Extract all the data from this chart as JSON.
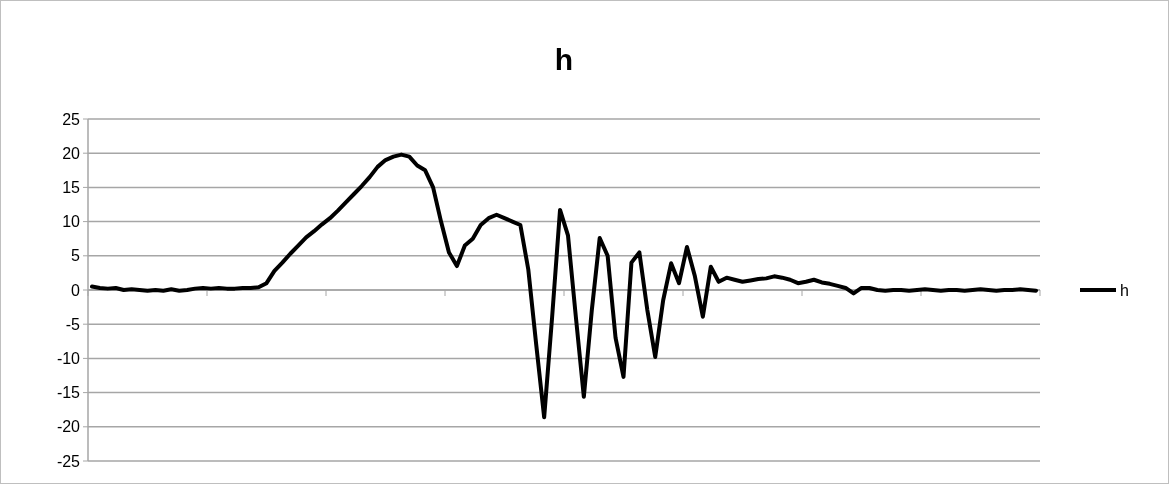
{
  "chart_data": {
    "type": "line",
    "title": "h",
    "categories": [
      null,
      null,
      null,
      null,
      null,
      null,
      null,
      null,
      null,
      null,
      null,
      null,
      null,
      null,
      null,
      null,
      null,
      null,
      null,
      null,
      null,
      null,
      null,
      null,
      null,
      null,
      null,
      null,
      null,
      null,
      null,
      null,
      null,
      null,
      null,
      null,
      null,
      null,
      null,
      null,
      null,
      null,
      null,
      null,
      null,
      null,
      null,
      null,
      null,
      null,
      null,
      null,
      null,
      null,
      null,
      null,
      null,
      null,
      null,
      null,
      null,
      null,
      null,
      null,
      null,
      null,
      null,
      null,
      null,
      null,
      null,
      null,
      null,
      null,
      null,
      null,
      null,
      null,
      null,
      null,
      null,
      null,
      null,
      null,
      null,
      null,
      null,
      null,
      null,
      null,
      null,
      null,
      null,
      null,
      null,
      null,
      null,
      null,
      null,
      null,
      null,
      null,
      null,
      null,
      null,
      null,
      null,
      null,
      null,
      null,
      null,
      null,
      null,
      null,
      null,
      null,
      null,
      null,
      null,
      null
    ],
    "series": [
      {
        "name": "h",
        "color": "#000000",
        "values": [
          0.5,
          0.3,
          0.2,
          0.3,
          0,
          0.1,
          0,
          -0.1,
          0,
          -0.1,
          0.1,
          -0.1,
          0,
          0.2,
          0.3,
          0.2,
          0.3,
          0.2,
          0.2,
          0.3,
          0.3,
          0.4,
          1,
          2.8,
          4,
          5.3,
          6.5,
          7.7,
          8.6,
          9.6,
          10.5,
          11.6,
          12.8,
          14,
          15.2,
          16.5,
          18,
          19,
          19.5,
          19.8,
          19.5,
          18.2,
          17.5,
          15,
          10,
          5.5,
          3.5,
          6.5,
          7.5,
          9.5,
          10.5,
          11,
          10.5,
          10,
          9.5,
          3,
          -8,
          -18.6,
          -4,
          11.7,
          8,
          -4,
          -15.6,
          -3,
          7.6,
          5,
          -7,
          -12.7,
          4,
          5.5,
          -2.9,
          -9.8,
          -1.5,
          3.9,
          1,
          6.3,
          2,
          -3.9,
          3.4,
          1.2,
          1.8,
          1.5,
          1.2,
          1.4,
          1.6,
          1.7,
          2,
          1.8,
          1.5,
          1,
          1.2,
          1.5,
          1.1,
          0.9,
          0.6,
          0.3,
          -0.5,
          0.3,
          0.3,
          0,
          -0.1,
          0,
          0,
          -0.1,
          0,
          0.1,
          0,
          -0.1,
          0,
          0,
          -0.1,
          0,
          0.1,
          0,
          -0.1,
          0,
          0,
          0.1,
          0,
          -0.1
        ]
      }
    ],
    "ylim": [
      -25,
      25
    ],
    "yticks": [
      -25,
      -20,
      -15,
      -10,
      -5,
      0,
      5,
      10,
      15,
      20,
      25
    ],
    "grid": "y",
    "legend": "right",
    "marker": "none",
    "line_style": "solid"
  }
}
